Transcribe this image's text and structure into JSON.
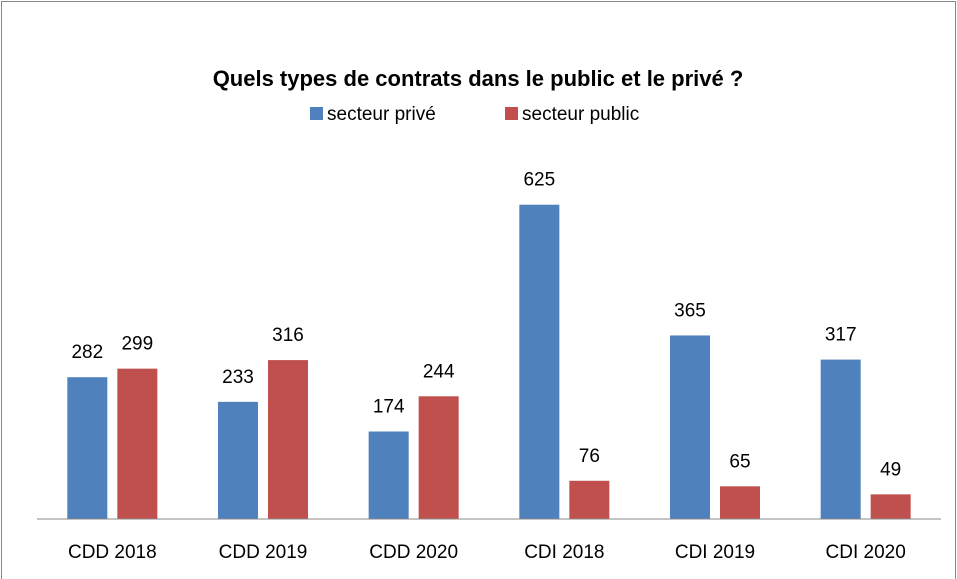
{
  "chart_data": {
    "type": "bar",
    "title": "Quels types de contrats dans le public et le privé ?",
    "categories": [
      "CDD 2018",
      "CDD 2019",
      "CDD 2020",
      "CDI 2018",
      "CDI 2019",
      "CDI 2020"
    ],
    "series": [
      {
        "name": "secteur privé",
        "color": "#4f81bd",
        "values": [
          282,
          233,
          174,
          625,
          365,
          317
        ]
      },
      {
        "name": "secteur public",
        "color": "#c0504d",
        "values": [
          299,
          316,
          244,
          76,
          65,
          49
        ]
      }
    ],
    "ylim": [
      0,
      700
    ],
    "legend": "top"
  }
}
